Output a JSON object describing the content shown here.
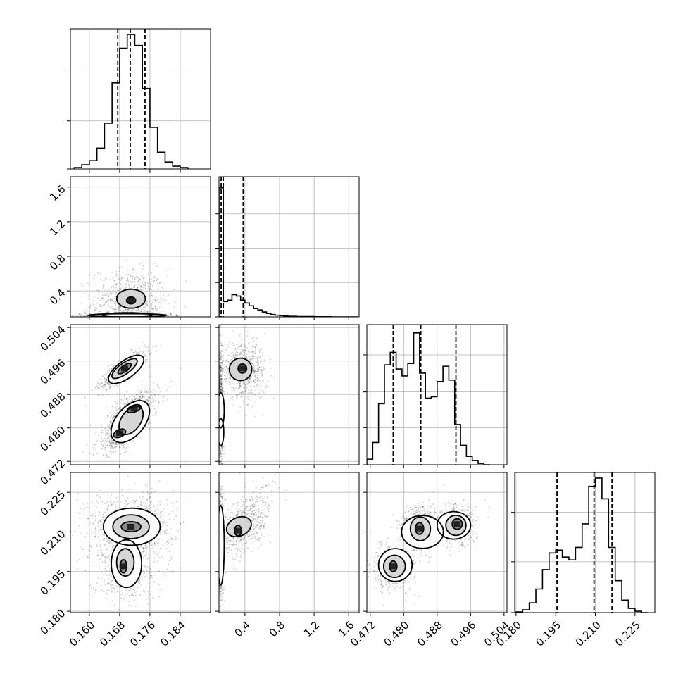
{
  "chart_data": {
    "type": "corner",
    "title": "",
    "parameters": [
      {
        "index": 0,
        "range": [
          0.155,
          0.192
        ],
        "ticks": [
          0.16,
          0.168,
          0.176,
          0.184
        ],
        "tick_labels": [
          "0.160",
          "0.168",
          "0.176",
          "0.184"
        ],
        "quantiles": [
          0.1675,
          0.1708,
          0.1747
        ]
      },
      {
        "index": 1,
        "range": [
          0.1,
          1.72
        ],
        "ticks": [
          0.4,
          0.8,
          1.2,
          1.6
        ],
        "tick_labels": [
          "0.4",
          "0.8",
          "1.2",
          "1.6"
        ],
        "quantiles": [
          0.125,
          0.15,
          0.38
        ]
      },
      {
        "index": 2,
        "range": [
          0.4712,
          0.5047
        ],
        "ticks": [
          0.472,
          0.48,
          0.488,
          0.496,
          0.504
        ],
        "tick_labels": [
          "0.472",
          "0.480",
          "0.488",
          "0.496",
          "0.504"
        ],
        "quantiles": [
          0.4775,
          0.4841,
          0.4925
        ]
      },
      {
        "index": 3,
        "range": [
          0.1795,
          0.2325
        ],
        "ticks": [
          0.18,
          0.195,
          0.21,
          0.225
        ],
        "tick_labels": [
          "0.180",
          "0.195",
          "0.210",
          "0.225"
        ],
        "quantiles": [
          0.1955,
          0.2095,
          0.2163
        ]
      }
    ],
    "histograms": [
      {
        "param": 0,
        "bins": [
          0.156,
          0.158,
          0.16,
          0.162,
          0.164,
          0.166,
          0.168,
          0.17,
          0.172,
          0.174,
          0.176,
          0.178,
          0.18,
          0.182,
          0.184,
          0.186
        ],
        "counts": [
          0.01,
          0.03,
          0.06,
          0.15,
          0.33,
          0.62,
          0.87,
          0.97,
          0.89,
          0.58,
          0.3,
          0.12,
          0.05,
          0.02,
          0.01
        ],
        "ymax": 1.0,
        "gridlines": [
          0.0,
          0.35,
          0.7
        ]
      },
      {
        "param": 1,
        "bins": [
          0.1,
          0.15,
          0.2,
          0.25,
          0.3,
          0.35,
          0.4,
          0.45,
          0.5,
          0.55,
          0.6,
          0.65,
          0.7,
          0.75,
          0.8,
          0.85,
          0.9,
          1.0,
          1.2,
          1.4,
          1.7
        ],
        "counts": [
          0.93,
          0.11,
          0.12,
          0.16,
          0.15,
          0.12,
          0.1,
          0.08,
          0.06,
          0.05,
          0.035,
          0.025,
          0.017,
          0.012,
          0.009,
          0.006,
          0.004,
          0.002,
          0.001,
          0.0
        ],
        "ymax": 1.0,
        "gridlines": [
          0.0,
          0.25,
          0.5,
          0.75
        ]
      },
      {
        "param": 2,
        "bins": [
          0.4712,
          0.4726,
          0.474,
          0.4754,
          0.4768,
          0.4782,
          0.4796,
          0.481,
          0.4824,
          0.4838,
          0.4852,
          0.4866,
          0.488,
          0.4894,
          0.4908,
          0.4922,
          0.4936,
          0.495,
          0.4964,
          0.4978,
          0.4992,
          0.5006
        ],
        "counts": [
          0.04,
          0.16,
          0.44,
          0.72,
          0.81,
          0.69,
          0.64,
          0.73,
          0.95,
          0.66,
          0.48,
          0.49,
          0.6,
          0.71,
          0.61,
          0.29,
          0.14,
          0.06,
          0.03,
          0.01,
          0.0
        ],
        "ymax": 1.0,
        "gridlines": [
          0.0,
          0.27,
          0.53,
          0.8
        ]
      },
      {
        "param": 3,
        "bins": [
          0.18,
          0.1825,
          0.185,
          0.1875,
          0.19,
          0.1925,
          0.195,
          0.1975,
          0.2,
          0.2025,
          0.205,
          0.2075,
          0.21,
          0.2125,
          0.215,
          0.2175,
          0.22,
          0.2225,
          0.225,
          0.2275,
          0.23
        ],
        "counts": [
          0.005,
          0.02,
          0.07,
          0.17,
          0.31,
          0.43,
          0.45,
          0.4,
          0.38,
          0.47,
          0.64,
          0.91,
          0.97,
          0.82,
          0.47,
          0.23,
          0.09,
          0.03,
          0.01,
          0.0
        ],
        "ymax": 1.0,
        "gridlines": [
          0.0,
          0.37,
          0.73
        ]
      }
    ],
    "pairs": [
      {
        "x_param": 0,
        "y_param": 1,
        "clusters": [
          {
            "cx": 0.1705,
            "cy": 0.25,
            "sx": 0.004,
            "sy": 0.16,
            "weight": 0.55
          },
          {
            "cx": 0.1705,
            "cy": 0.115,
            "sx": 0.0045,
            "sy": 0.012,
            "weight": 0.45
          }
        ],
        "contours": [
          {
            "level": "inner",
            "ellipses": [
              {
                "cx": 0.171,
                "cy": 0.29,
                "rx": 0.0012,
                "ry": 0.04
              }
            ]
          },
          {
            "level": "middle",
            "ellipses": [
              {
                "cx": 0.171,
                "cy": 0.31,
                "rx": 0.0038,
                "ry": 0.11
              }
            ]
          },
          {
            "level": "outer",
            "ellipses": [
              {
                "cx": 0.17,
                "cy": 0.118,
                "rx": 0.0105,
                "ry": 0.018
              },
              {
                "cx": 0.17,
                "cy": 0.12,
                "rx": 0.0066,
                "ry": 0.028
              }
            ]
          }
        ]
      },
      {
        "x_param": 0,
        "y_param": 2,
        "clusters": [
          {
            "cx": 0.169,
            "cy": 0.494,
            "sx": 0.0027,
            "sy": 0.002,
            "rho": 0.85,
            "weight": 0.33
          },
          {
            "cx": 0.1715,
            "cy": 0.4845,
            "sx": 0.0028,
            "sy": 0.002,
            "rho": 0.6,
            "weight": 0.36
          },
          {
            "cx": 0.168,
            "cy": 0.4785,
            "sx": 0.0025,
            "sy": 0.002,
            "rho": 0.6,
            "weight": 0.31
          }
        ],
        "contours": [
          {
            "level": "inner",
            "ellipses": [
              {
                "cx": 0.1693,
                "cy": 0.4942,
                "rx": 0.0021,
                "ry": 0.0007,
                "angle": -36
              },
              {
                "cx": 0.1718,
                "cy": 0.4846,
                "rx": 0.0019,
                "ry": 0.0008,
                "angle": -20
              },
              {
                "cx": 0.168,
                "cy": 0.4787,
                "rx": 0.0017,
                "ry": 0.0009,
                "angle": -25
              }
            ]
          },
          {
            "level": "middle",
            "ellipses": [
              {
                "cx": 0.1693,
                "cy": 0.4942,
                "rx": 0.004,
                "ry": 0.0013,
                "angle": -36
              },
              {
                "cx": 0.171,
                "cy": 0.4818,
                "rx": 0.0042,
                "ry": 0.0023,
                "angle": -55
              }
            ]
          },
          {
            "level": "outer",
            "ellipses": [
              {
                "cx": 0.1697,
                "cy": 0.494,
                "rx": 0.0055,
                "ry": 0.0021,
                "angle": -36
              },
              {
                "cx": 0.1708,
                "cy": 0.4815,
                "rx": 0.0065,
                "ry": 0.0034,
                "angle": -50
              }
            ]
          }
        ]
      },
      {
        "x_param": 1,
        "y_param": 2,
        "clusters": [
          {
            "cx": 0.38,
            "cy": 0.4937,
            "sx": 0.11,
            "sy": 0.0025,
            "weight": 0.45
          },
          {
            "cx": 0.12,
            "cy": 0.484,
            "sx": 0.012,
            "sy": 0.006,
            "weight": 0.55
          }
        ],
        "contours": [
          {
            "level": "inner",
            "ellipses": [
              {
                "cx": 0.37,
                "cy": 0.4942,
                "rx": 0.05,
                "ry": 0.0011
              }
            ]
          },
          {
            "level": "middle",
            "ellipses": [
              {
                "cx": 0.35,
                "cy": 0.494,
                "rx": 0.13,
                "ry": 0.0027
              }
            ]
          },
          {
            "level": "outer",
            "ellipses": [
              {
                "cx": 0.12,
                "cy": 0.4842,
                "rx": 0.04,
                "ry": 0.0042
              },
              {
                "cx": 0.12,
                "cy": 0.479,
                "rx": 0.035,
                "ry": 0.0032
              }
            ]
          }
        ]
      },
      {
        "x_param": 0,
        "y_param": 3,
        "clusters": [
          {
            "cx": 0.171,
            "cy": 0.212,
            "sx": 0.0045,
            "sy": 0.005,
            "weight": 0.68
          },
          {
            "cx": 0.169,
            "cy": 0.196,
            "sx": 0.0035,
            "sy": 0.005,
            "weight": 0.32
          }
        ],
        "contours": [
          {
            "level": "inner",
            "ellipses": [
              {
                "cx": 0.171,
                "cy": 0.212,
                "rx": 0.0026,
                "ry": 0.0019
              },
              {
                "cx": 0.169,
                "cy": 0.197,
                "rx": 0.0009,
                "ry": 0.0025
              }
            ]
          },
          {
            "level": "middle",
            "ellipses": [
              {
                "cx": 0.171,
                "cy": 0.212,
                "rx": 0.0048,
                "ry": 0.0045
              },
              {
                "cx": 0.1695,
                "cy": 0.1985,
                "rx": 0.0023,
                "ry": 0.0052
              }
            ]
          },
          {
            "level": "outer",
            "ellipses": [
              {
                "cx": 0.1712,
                "cy": 0.212,
                "rx": 0.0075,
                "ry": 0.007
              },
              {
                "cx": 0.1698,
                "cy": 0.198,
                "rx": 0.004,
                "ry": 0.009
              }
            ]
          }
        ]
      },
      {
        "x_param": 1,
        "y_param": 3,
        "clusters": [
          {
            "cx": 0.4,
            "cy": 0.213,
            "sx": 0.12,
            "sy": 0.005,
            "rho": 0.5,
            "weight": 0.45
          },
          {
            "cx": 0.12,
            "cy": 0.205,
            "sx": 0.012,
            "sy": 0.008,
            "weight": 0.55
          }
        ],
        "contours": [
          {
            "level": "inner",
            "ellipses": [
              {
                "cx": 0.32,
                "cy": 0.2105,
                "rx": 0.04,
                "ry": 0.002
              }
            ]
          },
          {
            "level": "middle",
            "ellipses": [
              {
                "cx": 0.33,
                "cy": 0.212,
                "rx": 0.15,
                "ry": 0.0035,
                "angle": -25
              }
            ]
          },
          {
            "level": "outer",
            "ellipses": [
              {
                "cx": 0.12,
                "cy": 0.205,
                "rx": 0.04,
                "ry": 0.015
              }
            ]
          }
        ]
      },
      {
        "x_param": 2,
        "y_param": 3,
        "clusters": [
          {
            "cx": 0.4775,
            "cy": 0.1965,
            "sx": 0.002,
            "sy": 0.0035,
            "weight": 0.3
          },
          {
            "cx": 0.484,
            "cy": 0.2115,
            "sx": 0.002,
            "sy": 0.0035,
            "weight": 0.38
          },
          {
            "cx": 0.4925,
            "cy": 0.2125,
            "sx": 0.002,
            "sy": 0.0032,
            "weight": 0.32
          }
        ],
        "contours": [
          {
            "level": "inner",
            "ellipses": [
              {
                "cx": 0.4775,
                "cy": 0.197,
                "rx": 0.0009,
                "ry": 0.002
              },
              {
                "cx": 0.4838,
                "cy": 0.2113,
                "rx": 0.001,
                "ry": 0.0022
              },
              {
                "cx": 0.4928,
                "cy": 0.213,
                "rx": 0.0012,
                "ry": 0.002
              }
            ]
          },
          {
            "level": "middle",
            "ellipses": [
              {
                "cx": 0.4778,
                "cy": 0.197,
                "rx": 0.0026,
                "ry": 0.0042
              },
              {
                "cx": 0.484,
                "cy": 0.2112,
                "rx": 0.0024,
                "ry": 0.0045
              },
              {
                "cx": 0.4925,
                "cy": 0.2125,
                "rx": 0.0024,
                "ry": 0.0038
              }
            ]
          },
          {
            "level": "outer",
            "ellipses": [
              {
                "cx": 0.478,
                "cy": 0.1975,
                "rx": 0.004,
                "ry": 0.0062
              },
              {
                "cx": 0.4845,
                "cy": 0.21,
                "rx": 0.005,
                "ry": 0.0062
              },
              {
                "cx": 0.492,
                "cy": 0.2125,
                "rx": 0.004,
                "ry": 0.0052
              }
            ]
          }
        ]
      }
    ],
    "grid": true,
    "legend": "none"
  }
}
